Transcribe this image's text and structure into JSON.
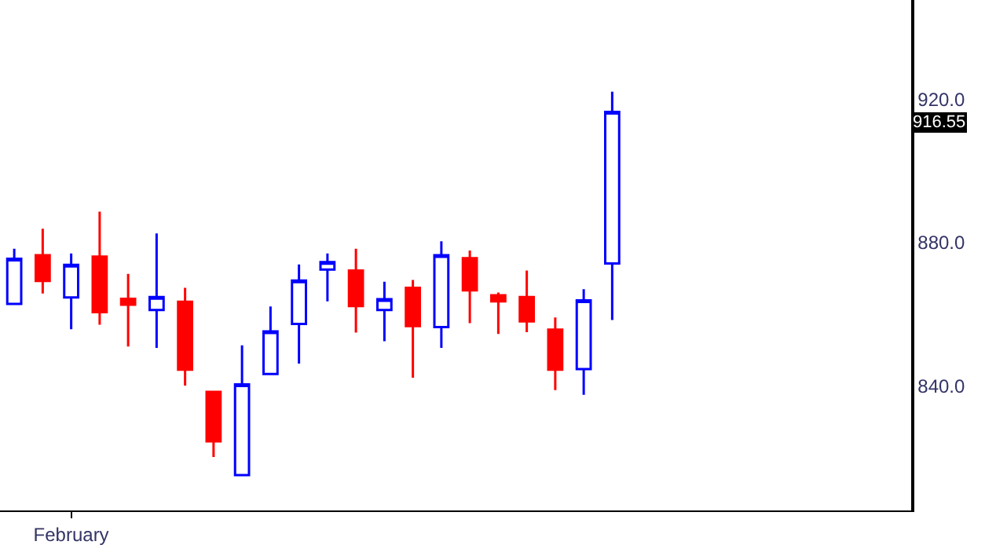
{
  "chart_data": {
    "type": "candlestick",
    "categories": [
      null,
      null,
      "February",
      null,
      null,
      null,
      null,
      null,
      null,
      null,
      null,
      null,
      null,
      null,
      null,
      null,
      null,
      null,
      null,
      null,
      null,
      null,
      null,
      null,
      null,
      null,
      null,
      null,
      null,
      null,
      null,
      null
    ],
    "ohlc": [
      [
        862.9,
        878.3,
        862.9,
        875.5
      ],
      [
        876.5,
        883.9,
        865.8,
        869.3
      ],
      [
        864.7,
        877.0,
        855.8,
        873.8
      ],
      [
        876.1,
        888.7,
        857.1,
        860.6
      ],
      [
        864.3,
        871.3,
        851.0,
        862.7
      ],
      [
        861.2,
        882.6,
        850.6,
        864.8
      ],
      [
        863.5,
        867.4,
        840.1,
        844.5
      ],
      [
        838.3,
        838.3,
        820.1,
        824.5
      ],
      [
        815.1,
        851.3,
        815.1,
        840.4
      ],
      [
        843.3,
        862.2,
        843.3,
        855.2
      ],
      [
        857.3,
        873.9,
        846.2,
        869.4
      ],
      [
        872.5,
        877.0,
        863.6,
        874.6
      ],
      [
        872.2,
        878.3,
        854.9,
        862.3
      ],
      [
        861.2,
        869.1,
        852.5,
        864.2
      ],
      [
        867.4,
        869.6,
        842.3,
        856.7
      ],
      [
        856.4,
        880.4,
        850.6,
        876.5
      ],
      [
        875.7,
        877.8,
        857.5,
        866.7
      ],
      [
        865.3,
        866.1,
        854.5,
        863.6
      ],
      [
        864.8,
        872.2,
        855.0,
        858.0
      ],
      [
        855.7,
        859.1,
        838.8,
        844.5
      ],
      [
        844.7,
        867.0,
        837.5,
        863.9
      ],
      [
        874.2,
        922.2,
        858.4,
        916.55
      ],
      null,
      null,
      null,
      null,
      null,
      null,
      null,
      null,
      null,
      null
    ],
    "colors": [
      "#0000ff",
      "#ff0000",
      "#0000ff",
      "#ff0000",
      "#ff0000",
      "#0000ff",
      "#ff0000",
      "#ff0000",
      "#0000ff",
      "#0000ff",
      "#0000ff",
      "#0000ff",
      "#ff0000",
      "#0000ff",
      "#ff0000",
      "#0000ff",
      "#ff0000",
      "#ff0000",
      "#ff0000",
      "#ff0000",
      "#0000ff",
      "#0000ff",
      null,
      null,
      null,
      null,
      null,
      null,
      null,
      null,
      null,
      null
    ],
    "ylim": [
      805.2,
      947.8
    ],
    "yticks": [
      {
        "value": 840,
        "label": "840.0"
      },
      {
        "value": 880,
        "label": "880.0"
      },
      {
        "value": 920,
        "label": "920.0"
      }
    ],
    "annotations": [
      "916.55"
    ],
    "legend": false
  }
}
